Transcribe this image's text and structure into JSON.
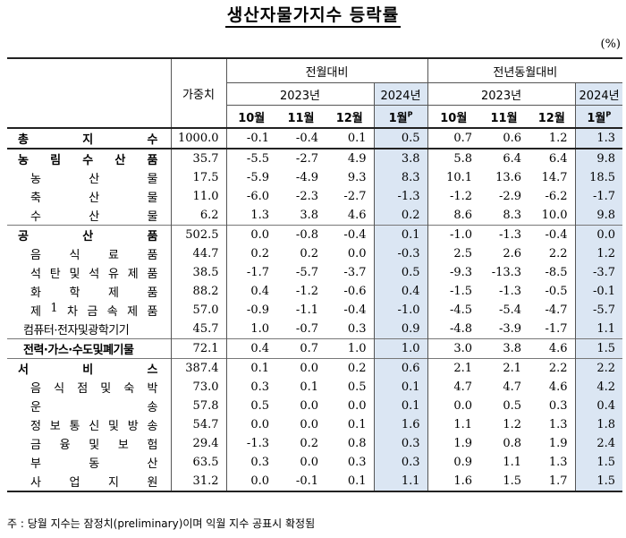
{
  "title": "생산자물가지수 등락률",
  "unit": "(%)",
  "headers": {
    "weight": "가중치",
    "mom": "전월대비",
    "yoy": "전년동월대비",
    "year2023": "2023년",
    "year2024": "2024년",
    "months": [
      "10월",
      "11월",
      "12월"
    ],
    "month_jan": "1월",
    "prelim_mark": "P"
  },
  "rows": [
    {
      "label": "총지수",
      "weight": "1000.0",
      "mom": [
        "-0.1",
        "-0.4",
        "0.1",
        "0.5"
      ],
      "yoy": [
        "0.7",
        "0.6",
        "1.2",
        "1.3"
      ]
    },
    {
      "label": "농림수산품",
      "weight": "35.7",
      "mom": [
        "-5.5",
        "-2.7",
        "4.9",
        "3.8"
      ],
      "yoy": [
        "5.8",
        "6.4",
        "6.4",
        "9.8"
      ]
    },
    {
      "label": "농산물",
      "weight": "17.5",
      "mom": [
        "-5.9",
        "-4.9",
        "9.3",
        "8.3"
      ],
      "yoy": [
        "10.1",
        "13.6",
        "14.7",
        "18.5"
      ]
    },
    {
      "label": "축산물",
      "weight": "11.0",
      "mom": [
        "-6.0",
        "-2.3",
        "-2.7",
        "-1.3"
      ],
      "yoy": [
        "-1.2",
        "-2.9",
        "-6.2",
        "-1.7"
      ]
    },
    {
      "label": "수산물",
      "weight": "6.2",
      "mom": [
        "1.3",
        "3.8",
        "4.6",
        "0.2"
      ],
      "yoy": [
        "8.6",
        "8.3",
        "10.0",
        "9.8"
      ]
    },
    {
      "label": "공산품",
      "weight": "502.5",
      "mom": [
        "0.0",
        "-0.8",
        "-0.4",
        "0.1"
      ],
      "yoy": [
        "-1.0",
        "-1.3",
        "-0.4",
        "0.0"
      ]
    },
    {
      "label": "음식료품",
      "weight": "44.7",
      "mom": [
        "0.2",
        "0.2",
        "0.0",
        "-0.3"
      ],
      "yoy": [
        "2.5",
        "2.6",
        "2.2",
        "1.2"
      ]
    },
    {
      "label": "석탄및석유제품",
      "weight": "38.5",
      "mom": [
        "-1.7",
        "-5.7",
        "-3.7",
        "0.5"
      ],
      "yoy": [
        "-9.3",
        "-13.3",
        "-8.5",
        "-3.7"
      ]
    },
    {
      "label": "화학제품",
      "weight": "88.2",
      "mom": [
        "0.4",
        "-1.2",
        "-0.6",
        "0.4"
      ],
      "yoy": [
        "-1.5",
        "-1.3",
        "-0.5",
        "-0.1"
      ]
    },
    {
      "label": "제1차금속제품",
      "weight": "57.0",
      "mom": [
        "-0.9",
        "-1.1",
        "-0.4",
        "-1.0"
      ],
      "yoy": [
        "-4.5",
        "-5.4",
        "-4.7",
        "-5.7"
      ]
    },
    {
      "label": "컴퓨터·전자및광학기기",
      "weight": "45.7",
      "mom": [
        "1.0",
        "-0.7",
        "0.3",
        "0.9"
      ],
      "yoy": [
        "-4.8",
        "-3.9",
        "-1.7",
        "1.1"
      ]
    },
    {
      "label": "전력·가스·수도및폐기물",
      "weight": "72.1",
      "mom": [
        "0.4",
        "0.7",
        "1.0",
        "1.0"
      ],
      "yoy": [
        "3.0",
        "3.8",
        "4.6",
        "1.5"
      ]
    },
    {
      "label": "서비스",
      "weight": "387.4",
      "mom": [
        "0.1",
        "0.0",
        "0.2",
        "0.6"
      ],
      "yoy": [
        "2.1",
        "2.1",
        "2.2",
        "2.2"
      ]
    },
    {
      "label": "음식점및숙박",
      "weight": "73.0",
      "mom": [
        "0.3",
        "0.1",
        "0.5",
        "0.1"
      ],
      "yoy": [
        "4.7",
        "4.7",
        "4.6",
        "4.2"
      ]
    },
    {
      "label": "운송",
      "weight": "57.8",
      "mom": [
        "0.5",
        "0.0",
        "0.0",
        "0.1"
      ],
      "yoy": [
        "0.0",
        "0.5",
        "0.3",
        "0.4"
      ]
    },
    {
      "label": "정보통신및방송",
      "weight": "54.7",
      "mom": [
        "0.0",
        "0.0",
        "0.1",
        "1.6"
      ],
      "yoy": [
        "1.1",
        "1.2",
        "1.3",
        "1.8"
      ]
    },
    {
      "label": "금융및보험",
      "weight": "29.4",
      "mom": [
        "-1.3",
        "0.2",
        "0.8",
        "0.3"
      ],
      "yoy": [
        "1.9",
        "0.8",
        "1.9",
        "2.4"
      ]
    },
    {
      "label": "부동산",
      "weight": "63.5",
      "mom": [
        "0.3",
        "0.0",
        "0.3",
        "0.3"
      ],
      "yoy": [
        "0.9",
        "1.1",
        "1.3",
        "1.5"
      ]
    },
    {
      "label": "사업지원",
      "weight": "31.2",
      "mom": [
        "0.0",
        "-0.1",
        "0.1",
        "1.1"
      ],
      "yoy": [
        "1.6",
        "1.5",
        "1.7",
        "1.5"
      ]
    }
  ],
  "note": "주 : 당월 지수는 잠정치(preliminary)이며 익월 지수 공표시 확정됨"
}
